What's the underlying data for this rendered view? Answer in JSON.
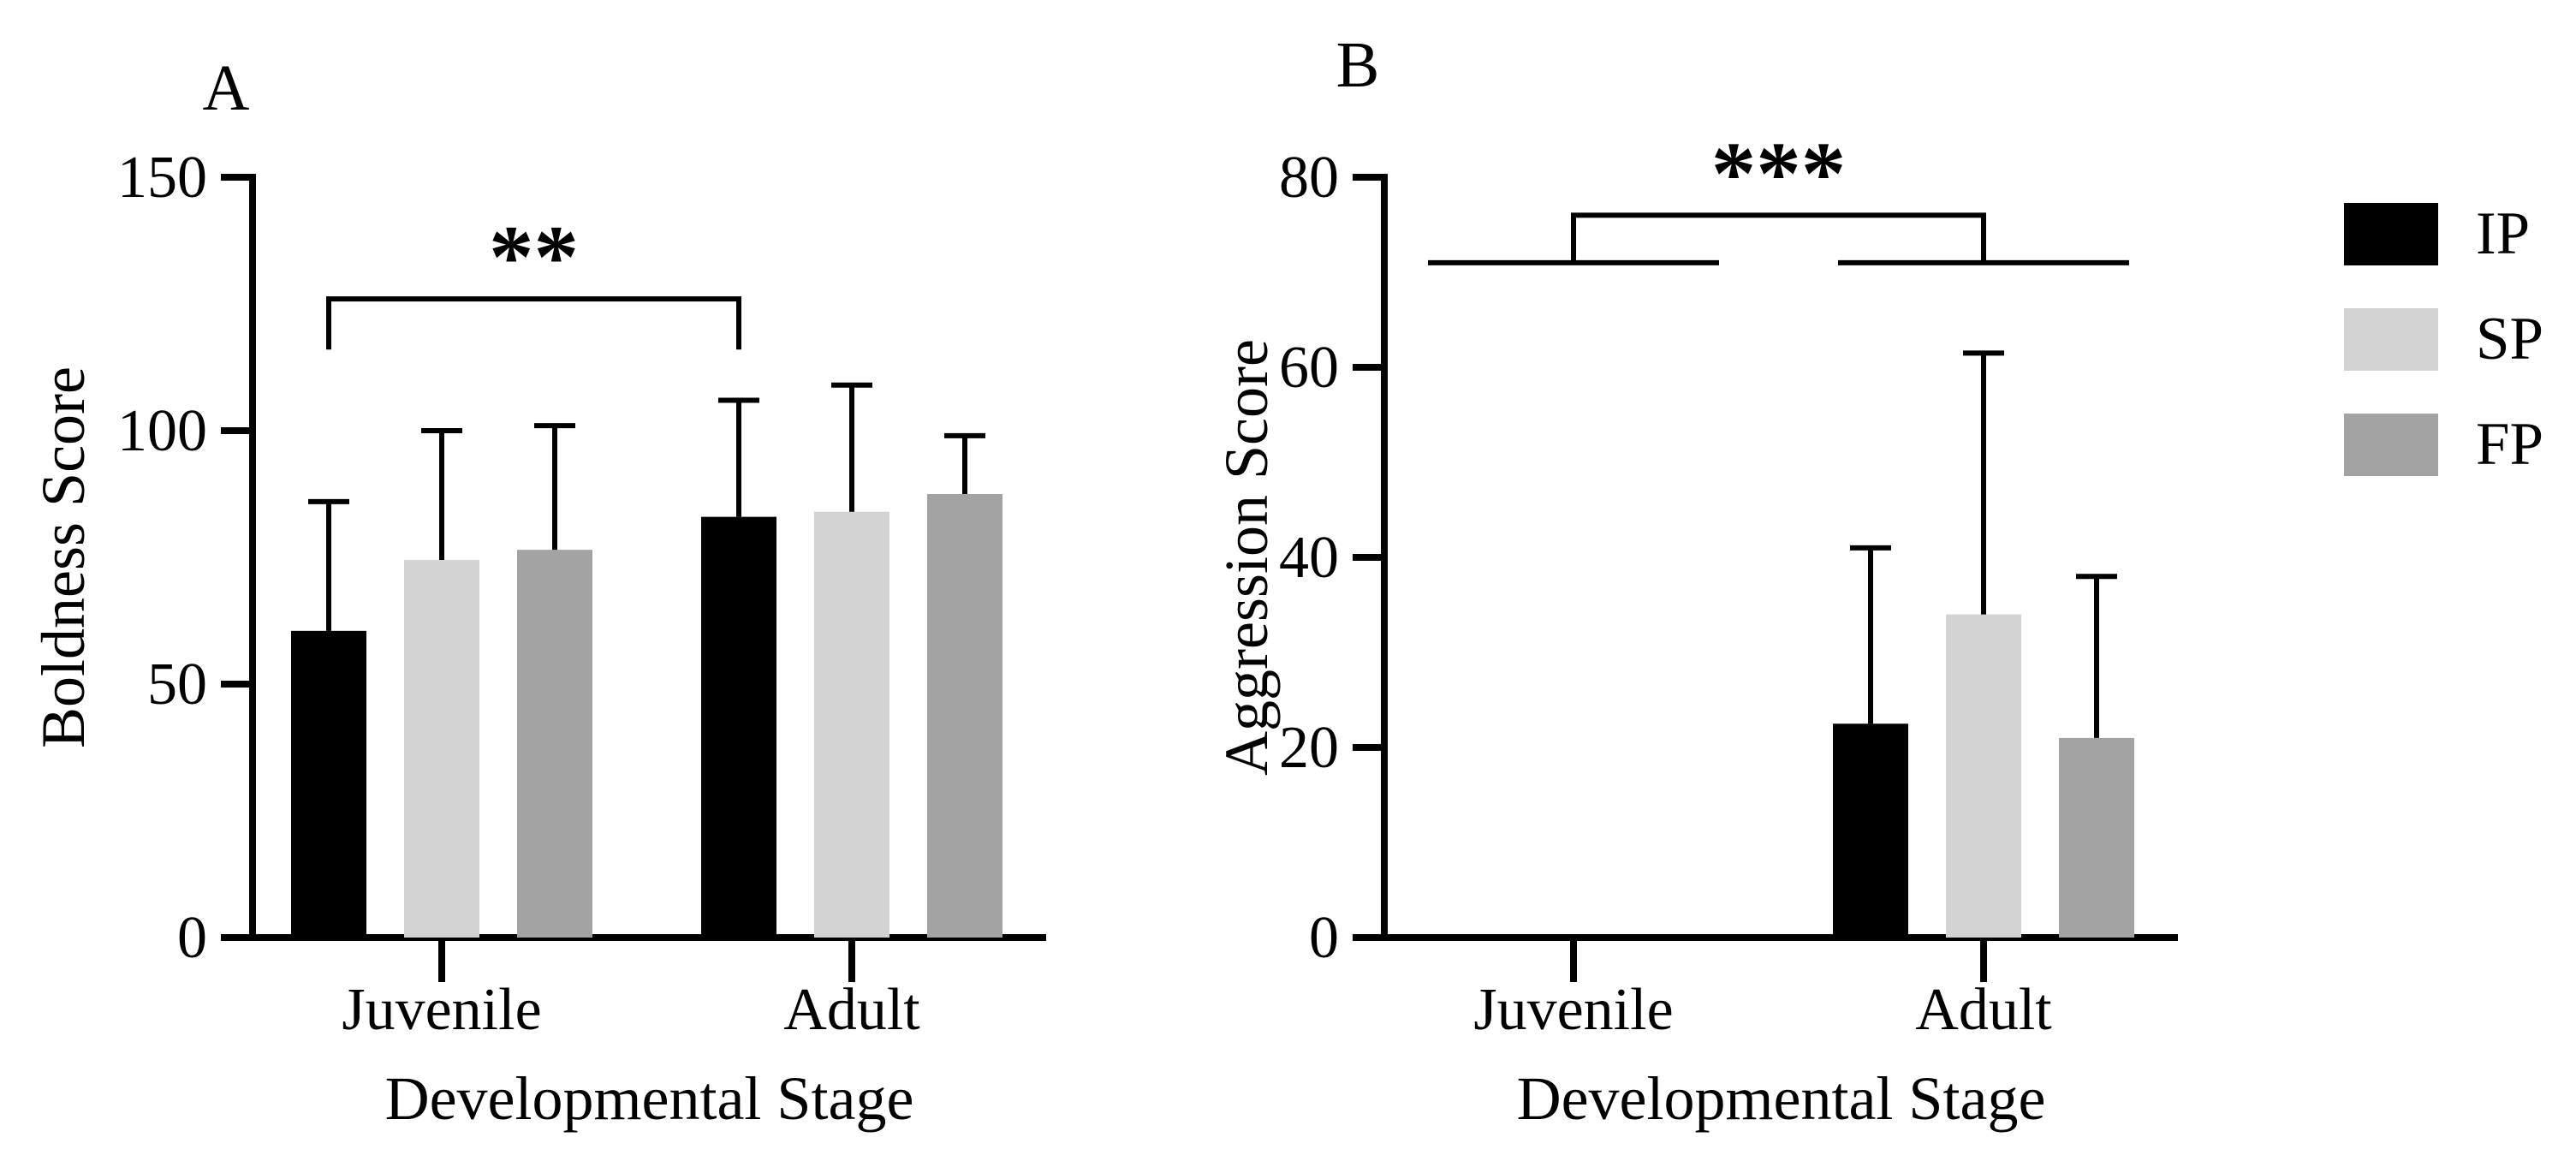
{
  "figure": {
    "background": "#ffffff",
    "text_color": "#000000"
  },
  "chart_data": [
    {
      "type": "bar",
      "panel_label": "A",
      "ylabel": "Boldness Score",
      "xlabel": "Developmental Stage",
      "categories": [
        "Juvenile",
        "Adult"
      ],
      "series": [
        {
          "name": "IP",
          "color": "#000000",
          "values": [
            60.5,
            83
          ],
          "errors_up": [
            25.5,
            23
          ]
        },
        {
          "name": "SP",
          "color": "#d3d3d3",
          "values": [
            74.5,
            84
          ],
          "errors_up": [
            25.5,
            25
          ]
        },
        {
          "name": "FP",
          "color": "#a3a3a3",
          "values": [
            76.5,
            87.5
          ],
          "errors_up": [
            24.5,
            11.5
          ]
        }
      ],
      "ylim": [
        0,
        150
      ],
      "yticks": [
        0,
        50,
        100,
        150
      ],
      "grid": false,
      "error_bars": "upper-sd",
      "significance": {
        "style": "bar-to-bar",
        "label": "**",
        "from": {
          "category": "Juvenile",
          "series": "IP"
        },
        "to": {
          "category": "Adult",
          "series": "IP"
        },
        "line_y": 126,
        "drop": 10
      }
    },
    {
      "type": "bar",
      "panel_label": "B",
      "ylabel": "Aggression Score",
      "xlabel": "Developmental Stage",
      "categories": [
        "Juvenile",
        "Adult"
      ],
      "series": [
        {
          "name": "IP",
          "color": "#000000",
          "values": [
            0,
            22.5
          ],
          "errors_up": [
            0,
            18.5
          ]
        },
        {
          "name": "SP",
          "color": "#d3d3d3",
          "values": [
            0,
            34
          ],
          "errors_up": [
            0,
            27.5
          ]
        },
        {
          "name": "FP",
          "color": "#a3a3a3",
          "values": [
            0,
            21
          ],
          "errors_up": [
            0,
            17
          ]
        }
      ],
      "ylim": [
        0,
        80
      ],
      "yticks": [
        0,
        20,
        40,
        60,
        80
      ],
      "grid": false,
      "error_bars": "upper-sd",
      "significance": {
        "style": "group-to-group",
        "label": "***",
        "groups": [
          "Juvenile",
          "Adult"
        ],
        "group_line_y": 71,
        "connector_y": 76
      }
    }
  ],
  "legend": {
    "position": "right",
    "items": [
      {
        "label": "IP",
        "color": "#000000"
      },
      {
        "label": "SP",
        "color": "#d3d3d3"
      },
      {
        "label": "FP",
        "color": "#a3a3a3"
      }
    ]
  }
}
